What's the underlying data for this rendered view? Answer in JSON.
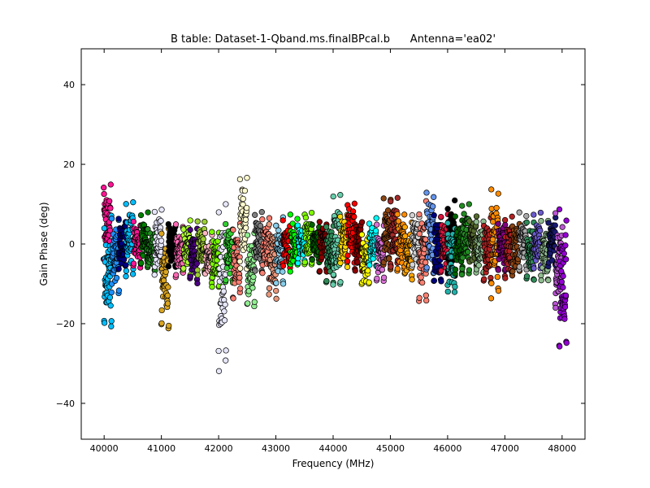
{
  "chart_data": {
    "type": "scatter",
    "title": "B table: Dataset-1-Qband.ms.finalBPcal.b      Antenna='ea02'",
    "xlabel": "Frequency (MHz)",
    "ylabel": "Gain Phase (deg)",
    "xlim": [
      39600,
      48400
    ],
    "ylim": [
      -49,
      49
    ],
    "xticks": [
      40000,
      41000,
      42000,
      43000,
      44000,
      45000,
      46000,
      47000,
      48000
    ],
    "yticks": [
      40,
      20,
      0,
      -20,
      -40
    ],
    "ytick_labels": [
      "40",
      "20",
      "0",
      "−20",
      "−40"
    ],
    "grid": false,
    "legend": "none",
    "marker": "circle",
    "spw_width_mhz": 128,
    "series": [
      {
        "color": "#ff1493",
        "x_start": 39990,
        "ymin": -6,
        "ymax": 16.5
      },
      {
        "color": "#00bfff",
        "x_start": 40000,
        "ymin": -22.5,
        "ymax": 8
      },
      {
        "color": "#1e90ff",
        "x_start": 40130,
        "ymin": -13,
        "ymax": 7
      },
      {
        "color": "#000080",
        "x_start": 40250,
        "ymin": -7,
        "ymax": 7
      },
      {
        "color": "#00bfff",
        "x_start": 40380,
        "ymin": -9,
        "ymax": 11.5
      },
      {
        "color": "#ff1493",
        "x_start": 40510,
        "ymin": -6,
        "ymax": 6
      },
      {
        "color": "#008000",
        "x_start": 40640,
        "ymin": -6,
        "ymax": 8
      },
      {
        "color": "#228b22",
        "x_start": 40760,
        "ymin": -7,
        "ymax": 4
      },
      {
        "color": "#e6e6fa",
        "x_start": 40880,
        "ymin": -8,
        "ymax": 10
      },
      {
        "color": "#daa520",
        "x_start": 41000,
        "ymin": -22,
        "ymax": 4
      },
      {
        "color": "#000000",
        "x_start": 41120,
        "ymin": -6,
        "ymax": 6
      },
      {
        "color": "#ff69b4",
        "x_start": 41250,
        "ymin": -9,
        "ymax": 5
      },
      {
        "color": "#adff2f",
        "x_start": 41380,
        "ymin": -8,
        "ymax": 6
      },
      {
        "color": "#4b0082",
        "x_start": 41500,
        "ymin": -10,
        "ymax": 4
      },
      {
        "color": "#9acd32",
        "x_start": 41630,
        "ymin": -8,
        "ymax": 6
      },
      {
        "color": "#ffb6c1",
        "x_start": 41760,
        "ymin": -9,
        "ymax": 3
      },
      {
        "color": "#7cfc00",
        "x_start": 41880,
        "ymin": -11,
        "ymax": 4
      },
      {
        "color": "#e6e6fa",
        "x_start": 42000,
        "ymin": -32,
        "ymax": 15
      },
      {
        "color": "#32cd32",
        "x_start": 42120,
        "ymin": -10,
        "ymax": 6
      },
      {
        "color": "#fa8072",
        "x_start": 42250,
        "ymin": -14,
        "ymax": 6
      },
      {
        "color": "#fffacd",
        "x_start": 42370,
        "ymin": -8,
        "ymax": 19
      },
      {
        "color": "#90ee90",
        "x_start": 42500,
        "ymin": -17,
        "ymax": 4
      },
      {
        "color": "#808080",
        "x_start": 42630,
        "ymin": -7,
        "ymax": 9
      },
      {
        "color": "#fa8072",
        "x_start": 42760,
        "ymin": -9,
        "ymax": 8
      },
      {
        "color": "#e9967a",
        "x_start": 42880,
        "ymin": -14,
        "ymax": 6
      },
      {
        "color": "#87ceeb",
        "x_start": 43000,
        "ymin": -10,
        "ymax": 7
      },
      {
        "color": "#ff0000",
        "x_start": 43120,
        "ymin": -6,
        "ymax": 6
      },
      {
        "color": "#00ff00",
        "x_start": 43250,
        "ymin": -7,
        "ymax": 8
      },
      {
        "color": "#00ffff",
        "x_start": 43380,
        "ymin": -5,
        "ymax": 5
      },
      {
        "color": "#7fff00",
        "x_start": 43500,
        "ymin": -6,
        "ymax": 9
      },
      {
        "color": "#006400",
        "x_start": 43630,
        "ymin": -5,
        "ymax": 5
      },
      {
        "color": "#8b0000",
        "x_start": 43760,
        "ymin": -7,
        "ymax": 7
      },
      {
        "color": "#2e8b57",
        "x_start": 43880,
        "ymin": -10,
        "ymax": 6
      },
      {
        "color": "#66cdaa",
        "x_start": 44000,
        "ymin": -11,
        "ymax": 14
      },
      {
        "color": "#ffd700",
        "x_start": 44120,
        "ymin": -6,
        "ymax": 8
      },
      {
        "color": "#ff0000",
        "x_start": 44250,
        "ymin": -5,
        "ymax": 12
      },
      {
        "color": "#8b0000",
        "x_start": 44380,
        "ymin": -7,
        "ymax": 7
      },
      {
        "color": "#ffff00",
        "x_start": 44500,
        "ymin": -12,
        "ymax": 4
      },
      {
        "color": "#00ffff",
        "x_start": 44630,
        "ymin": -6,
        "ymax": 7
      },
      {
        "color": "#da70d6",
        "x_start": 44760,
        "ymin": -10,
        "ymax": 5
      },
      {
        "color": "#8b4513",
        "x_start": 44880,
        "ymin": -7,
        "ymax": 12
      },
      {
        "color": "#a52a2a",
        "x_start": 45000,
        "ymin": -6,
        "ymax": 12
      },
      {
        "color": "#ff8c00",
        "x_start": 45120,
        "ymin": -7,
        "ymax": 8
      },
      {
        "color": "#ffa500",
        "x_start": 45250,
        "ymin": -9,
        "ymax": 6
      },
      {
        "color": "#d3d3d3",
        "x_start": 45380,
        "ymin": -6,
        "ymax": 8
      },
      {
        "color": "#fa8072",
        "x_start": 45500,
        "ymin": -15,
        "ymax": 11
      },
      {
        "color": "#6495ed",
        "x_start": 45630,
        "ymin": -8,
        "ymax": 14
      },
      {
        "color": "#000080",
        "x_start": 45760,
        "ymin": -12,
        "ymax": 10
      },
      {
        "color": "#dc143c",
        "x_start": 45880,
        "ymin": -9,
        "ymax": 8
      },
      {
        "color": "#000000",
        "x_start": 46000,
        "ymin": -10,
        "ymax": 12
      },
      {
        "color": "#20b2aa",
        "x_start": 46000,
        "ymin": -13,
        "ymax": 6
      },
      {
        "color": "#006400",
        "x_start": 46130,
        "ymin": -8,
        "ymax": 7
      },
      {
        "color": "#228b22",
        "x_start": 46250,
        "ymin": -8,
        "ymax": 11
      },
      {
        "color": "#556b2f",
        "x_start": 46380,
        "ymin": -6,
        "ymax": 7
      },
      {
        "color": "#8fbc8f",
        "x_start": 46500,
        "ymin": -8,
        "ymax": 6
      },
      {
        "color": "#b22222",
        "x_start": 46630,
        "ymin": -11,
        "ymax": 7
      },
      {
        "color": "#ff8c00",
        "x_start": 46760,
        "ymin": -14,
        "ymax": 15
      },
      {
        "color": "#800080",
        "x_start": 46880,
        "ymin": -7,
        "ymax": 6
      },
      {
        "color": "#b22222",
        "x_start": 47000,
        "ymin": -9,
        "ymax": 7
      },
      {
        "color": "#8b4513",
        "x_start": 47130,
        "ymin": -8,
        "ymax": 6
      },
      {
        "color": "#a9a9a9",
        "x_start": 47250,
        "ymin": -7,
        "ymax": 8
      },
      {
        "color": "#2e8b57",
        "x_start": 47380,
        "ymin": -9,
        "ymax": 6
      },
      {
        "color": "#6a5acd",
        "x_start": 47500,
        "ymin": -7,
        "ymax": 8
      },
      {
        "color": "#8fbc8f",
        "x_start": 47630,
        "ymin": -10,
        "ymax": 6
      },
      {
        "color": "#191970",
        "x_start": 47760,
        "ymin": -6,
        "ymax": 7
      },
      {
        "color": "#ba55d3",
        "x_start": 47880,
        "ymin": -18,
        "ymax": 8
      },
      {
        "color": "#9400d3",
        "x_start": 47950,
        "ymin": -26,
        "ymax": 9
      }
    ]
  }
}
